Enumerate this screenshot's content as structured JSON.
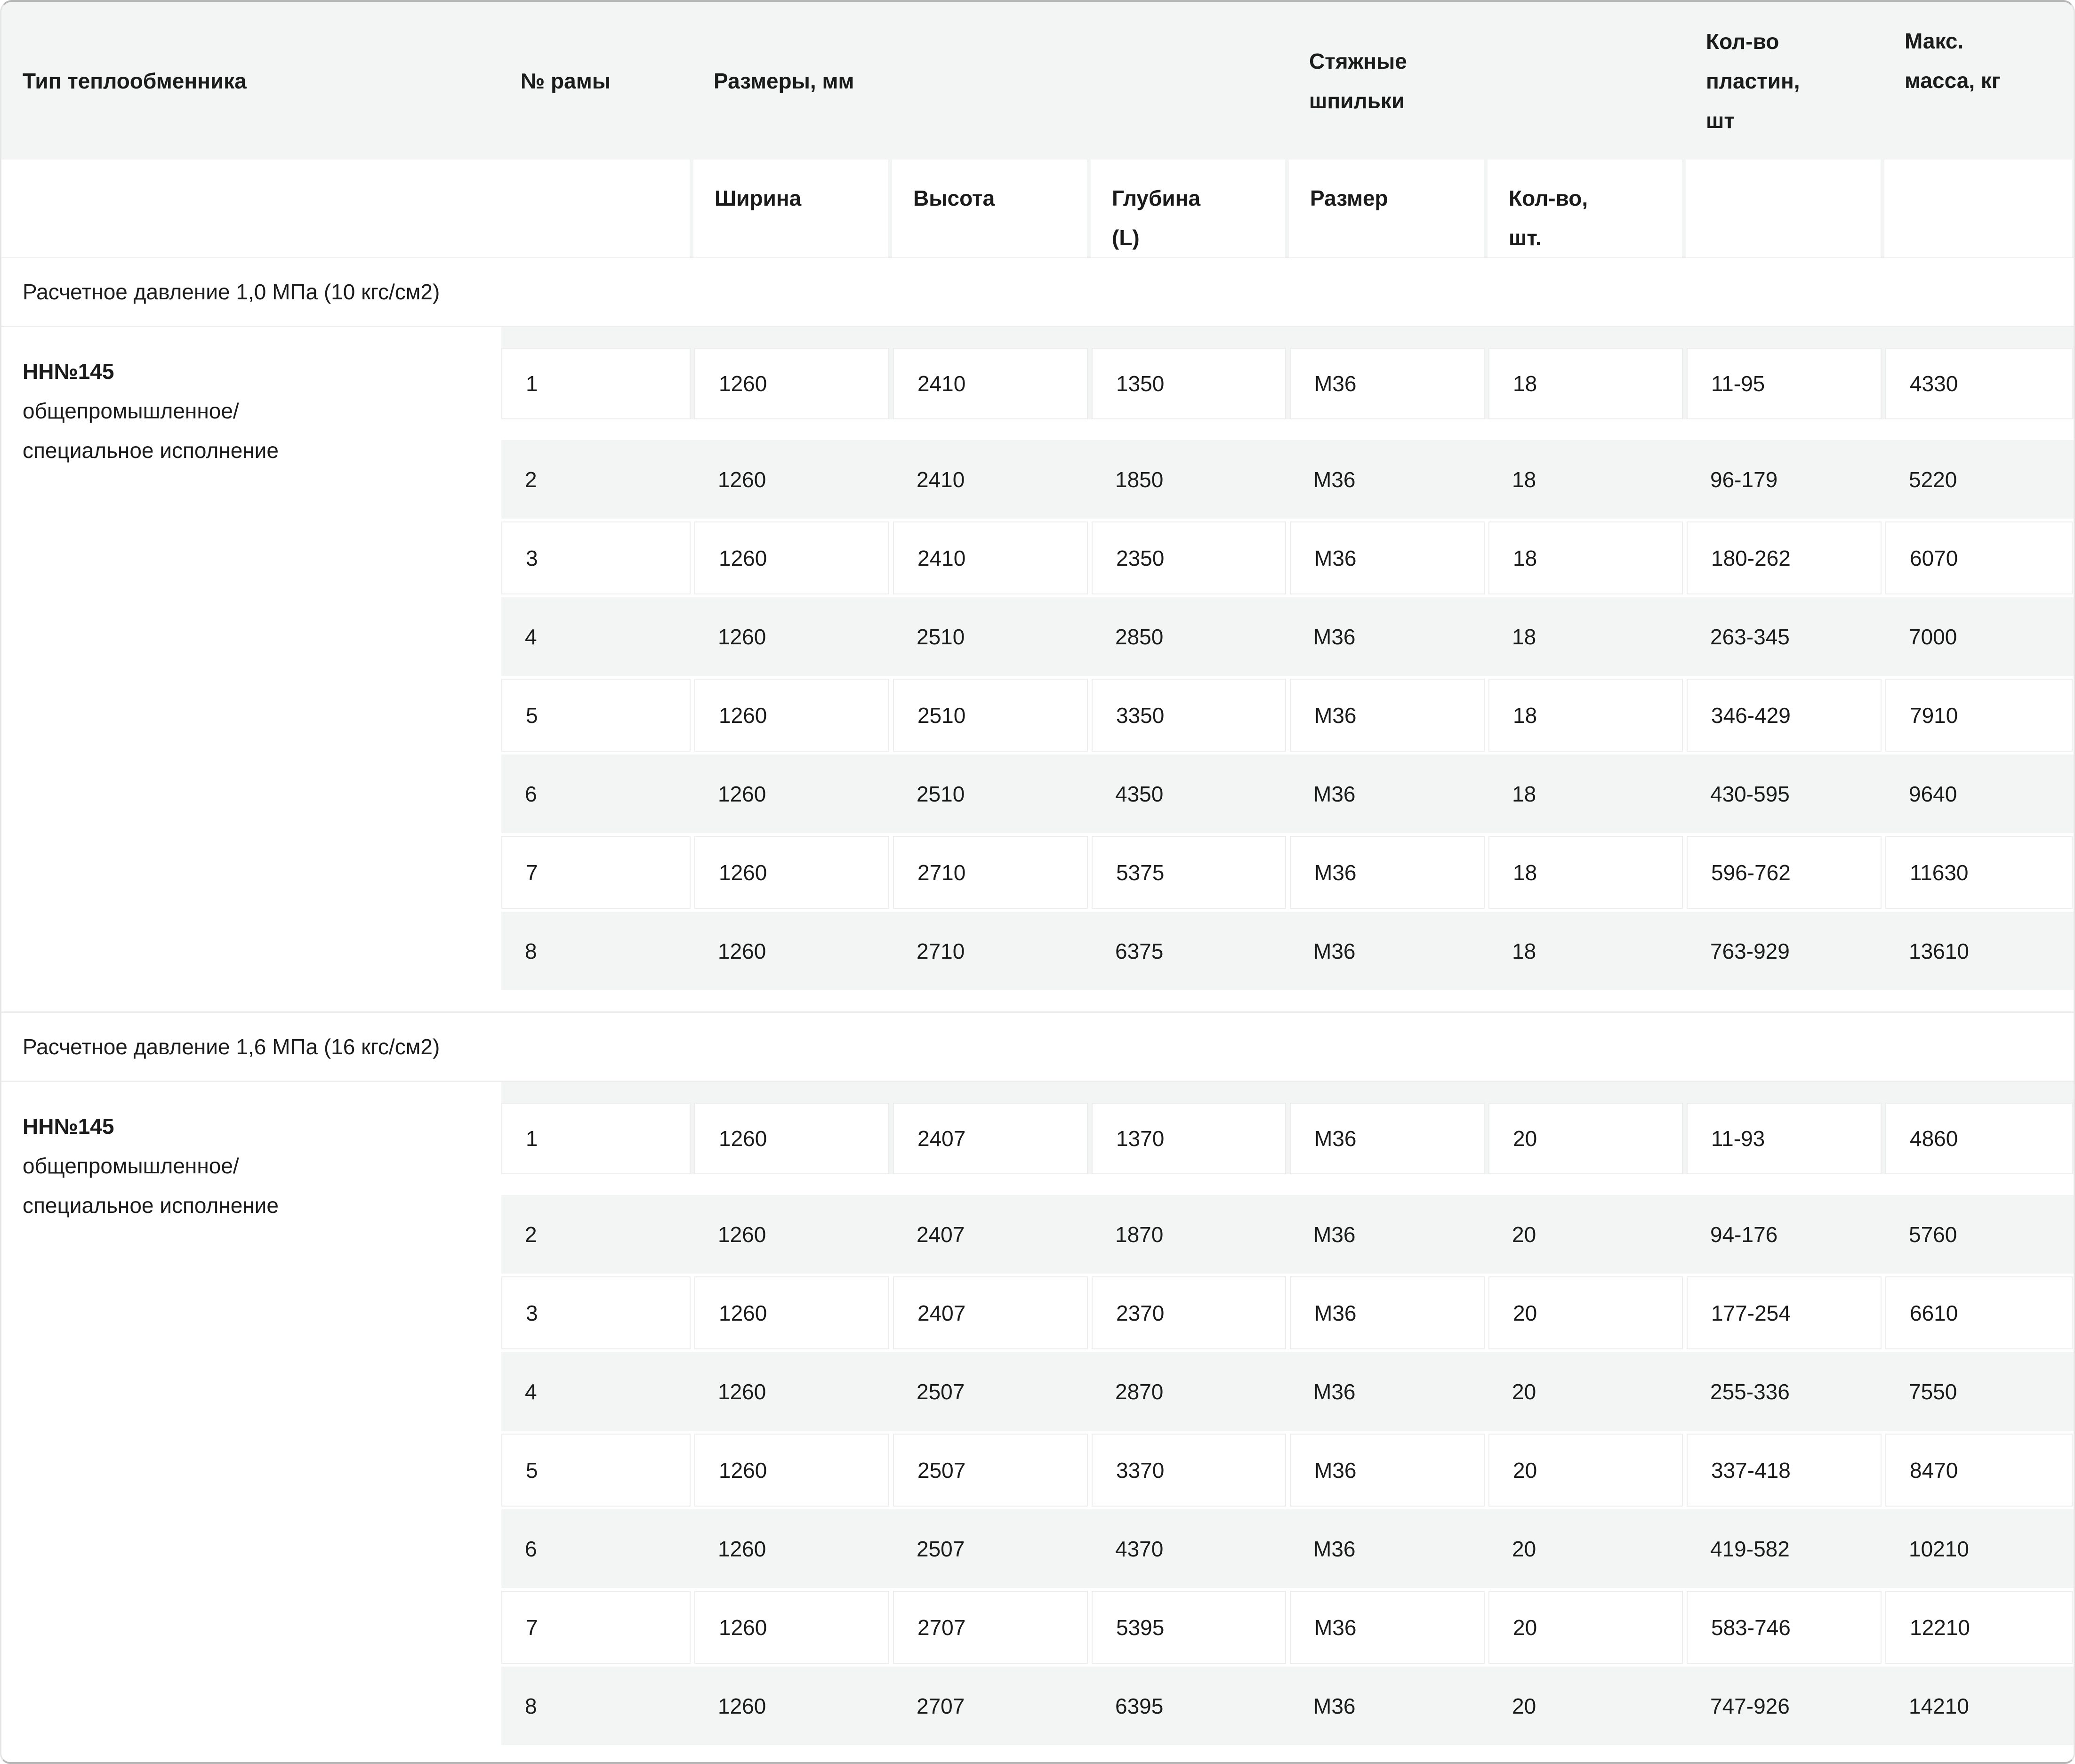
{
  "theme": {
    "header_bg": "#f3f4f4",
    "stripe_bg": "#f3f4f4",
    "cell_border": "#ededed",
    "card_border": "#b7b7b7",
    "text_color": "#1b1b1b"
  },
  "header": {
    "type": "Тип теплообменника",
    "frame": "№ рамы",
    "dimensions": "Размеры, мм",
    "studs": "Стяжные шпильки",
    "plates": "Кол-во\nпластин,\nшт",
    "mass": "Макс.\nмасса, кг"
  },
  "subheader": {
    "width": "Ширина",
    "height": "Высота",
    "depth": "Глубина\n(L)",
    "size": "Размер",
    "qty": "Кол-во,\nшт."
  },
  "sections": [
    {
      "title": "Расчетное давление 1,0 МПа (10 кгс/см2)",
      "type_name": "НН№145",
      "type_desc": [
        "общепромышленное/",
        "специальное исполнение"
      ],
      "rows": [
        [
          "1",
          "1260",
          "2410",
          "1350",
          "М36",
          "18",
          "11-95",
          "4330"
        ],
        [
          "2",
          "1260",
          "2410",
          "1850",
          "М36",
          "18",
          "96-179",
          "5220"
        ],
        [
          "3",
          "1260",
          "2410",
          "2350",
          "М36",
          "18",
          "180-262",
          "6070"
        ],
        [
          "4",
          "1260",
          "2510",
          "2850",
          "М36",
          "18",
          "263-345",
          "7000"
        ],
        [
          "5",
          "1260",
          "2510",
          "3350",
          "М36",
          "18",
          "346-429",
          "7910"
        ],
        [
          "6",
          "1260",
          "2510",
          "4350",
          "М36",
          "18",
          "430-595",
          "9640"
        ],
        [
          "7",
          "1260",
          "2710",
          "5375",
          "М36",
          "18",
          "596-762",
          "11630"
        ],
        [
          "8",
          "1260",
          "2710",
          "6375",
          "М36",
          "18",
          "763-929",
          "13610"
        ]
      ]
    },
    {
      "title": "Расчетное давление 1,6 МПа (16 кгс/см2)",
      "type_name": "НН№145",
      "type_desc": [
        "общепромышленное/",
        "специальное исполнение"
      ],
      "rows": [
        [
          "1",
          "1260",
          "2407",
          "1370",
          "М36",
          "20",
          "11-93",
          "4860"
        ],
        [
          "2",
          "1260",
          "2407",
          "1870",
          "М36",
          "20",
          "94-176",
          "5760"
        ],
        [
          "3",
          "1260",
          "2407",
          "2370",
          "М36",
          "20",
          "177-254",
          "6610"
        ],
        [
          "4",
          "1260",
          "2507",
          "2870",
          "М36",
          "20",
          "255-336",
          "7550"
        ],
        [
          "5",
          "1260",
          "2507",
          "3370",
          "М36",
          "20",
          "337-418",
          "8470"
        ],
        [
          "6",
          "1260",
          "2507",
          "4370",
          "М36",
          "20",
          "419-582",
          "10210"
        ],
        [
          "7",
          "1260",
          "2707",
          "5395",
          "М36",
          "20",
          "583-746",
          "12210"
        ],
        [
          "8",
          "1260",
          "2707",
          "6395",
          "М36",
          "20",
          "747-926",
          "14210"
        ]
      ]
    }
  ]
}
